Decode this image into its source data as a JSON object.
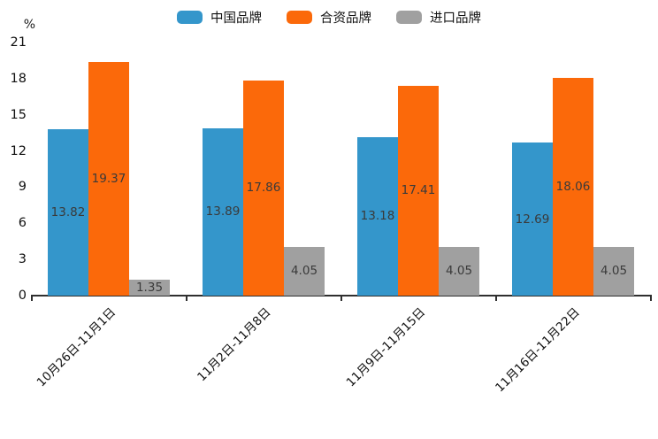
{
  "chart_data": {
    "type": "bar",
    "title": "",
    "xlabel": "",
    "ylabel": "%",
    "ylim": [
      0,
      21
    ],
    "yticks": [
      0,
      3,
      6,
      9,
      12,
      15,
      18,
      21
    ],
    "grid": false,
    "legend_position": "top-center",
    "value_labels": true,
    "categories": [
      "10月26日-11月1日",
      "11月2日-11月8日",
      "11月9日-11月15日",
      "11月16日-11月22日"
    ],
    "series": [
      {
        "name": "中国品牌",
        "color": "#3496cb",
        "values": [
          13.82,
          13.89,
          13.18,
          12.69
        ]
      },
      {
        "name": "合资品牌",
        "color": "#fb690a",
        "values": [
          19.37,
          17.86,
          17.41,
          18.06
        ]
      },
      {
        "name": "进口品牌",
        "color": "#a0a0a0",
        "values": [
          1.35,
          4.05,
          4.05,
          4.05
        ]
      }
    ],
    "axis_color": "#2f2f2f",
    "bar_label_color": "#3a3a3a"
  }
}
